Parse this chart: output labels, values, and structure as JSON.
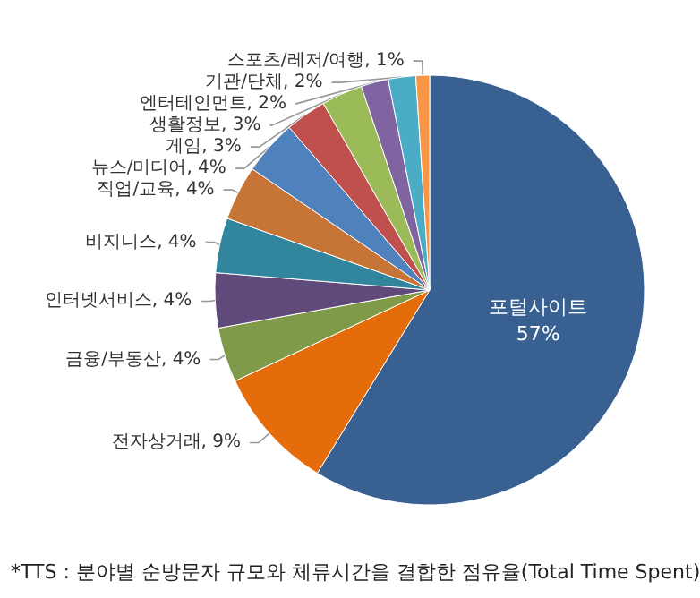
{
  "chart_data": {
    "type": "pie",
    "categories": [
      "포털사이트",
      "전자상거래",
      "금융/부동산",
      "인터넷서비스",
      "비지니스",
      "직업/교육",
      "뉴스/미디어",
      "게임",
      "생활정보",
      "엔터테인먼트",
      "기관/단체",
      "스포츠/레저/여행"
    ],
    "values": [
      57,
      9,
      4,
      4,
      4,
      4,
      4,
      3,
      3,
      2,
      2,
      1
    ],
    "value_labels": [
      "57%",
      "9%",
      "4%",
      "4%",
      "4%",
      "4%",
      "4%",
      "3%",
      "3%",
      "2%",
      "2%",
      "1%"
    ],
    "colors": [
      "#386090",
      "#e46c0a",
      "#7f9a48",
      "#604a7b",
      "#31859c",
      "#c77536",
      "#4f81bd",
      "#c0504d",
      "#9bbb59",
      "#8064a2",
      "#4bacc6",
      "#f79646"
    ],
    "annotations": [
      "*TTS : 분야별 순방문자 규모와 체류시간을 결합한 점유율(Total Time Spent)"
    ],
    "legend": false
  }
}
